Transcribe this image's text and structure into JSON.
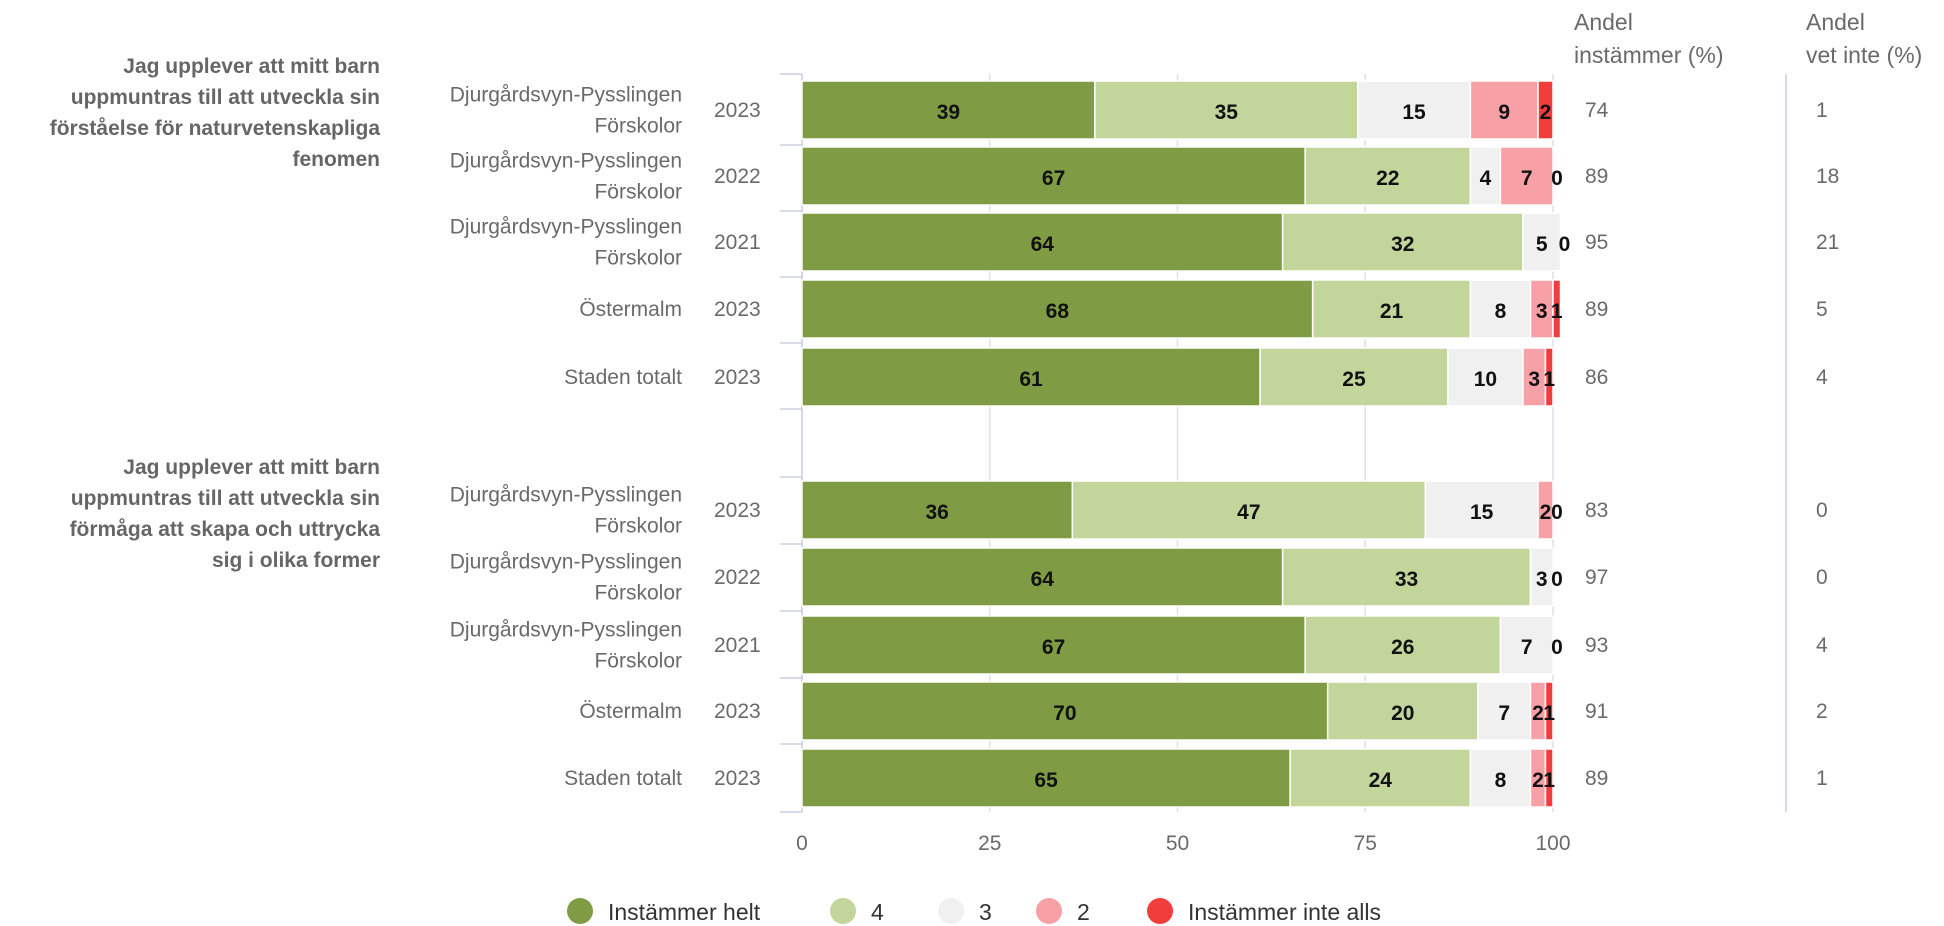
{
  "chart_data": {
    "type": "bar",
    "orientation": "horizontal",
    "stacked": true,
    "xlim": [
      0,
      100
    ],
    "xticks": [
      0,
      25,
      50,
      75,
      100
    ],
    "grid": true,
    "legend_position": "bottom",
    "columns": [
      {
        "line1": "Andel",
        "line2": "instämmer (%)"
      },
      {
        "line1": "Andel",
        "line2": "vet inte (%)"
      }
    ],
    "series": [
      {
        "name": "Instämmer helt",
        "color": "#7f9c44"
      },
      {
        "name": "4",
        "color": "#c2d69c"
      },
      {
        "name": "3",
        "color": "#f0f0f0"
      },
      {
        "name": "2",
        "color": "#f7a1a6"
      },
      {
        "name": "Instämmer inte alls",
        "color": "#f23d3d"
      }
    ],
    "groups": [
      {
        "title_lines": [
          "Jag upplever att mitt barn",
          "uppmuntras till att utveckla sin",
          "förståelse för naturvetenskapliga",
          "fenomen"
        ],
        "rows": [
          {
            "label_lines": [
              "Djurgårdsvyn-Pysslingen",
              "Förskolor"
            ],
            "year": "2023",
            "values": [
              39,
              35,
              15,
              9,
              2
            ],
            "labels": [
              "39",
              "35",
              "15",
              "9",
              "2"
            ],
            "andel_instammer": "74",
            "andel_vet_inte": "1"
          },
          {
            "label_lines": [
              "Djurgårdsvyn-Pysslingen",
              "Förskolor"
            ],
            "year": "2022",
            "values": [
              67,
              22,
              4,
              7,
              0
            ],
            "labels": [
              "67",
              "22",
              "4",
              "7",
              "0"
            ],
            "andel_instammer": "89",
            "andel_vet_inte": "18"
          },
          {
            "label_lines": [
              "Djurgårdsvyn-Pysslingen",
              "Förskolor"
            ],
            "year": "2021",
            "values": [
              64,
              32,
              5,
              0,
              0
            ],
            "labels": [
              "64",
              "32",
              "5",
              "0",
              ""
            ],
            "andel_instammer": "95",
            "andel_vet_inte": "21"
          },
          {
            "label_lines": [
              "Östermalm"
            ],
            "year": "2023",
            "values": [
              68,
              21,
              8,
              3,
              1
            ],
            "labels": [
              "68",
              "21",
              "8",
              "3",
              "1"
            ],
            "andel_instammer": "89",
            "andel_vet_inte": "5"
          },
          {
            "label_lines": [
              "Staden totalt"
            ],
            "year": "2023",
            "values": [
              61,
              25,
              10,
              3,
              1
            ],
            "labels": [
              "61",
              "25",
              "10",
              "3",
              "1"
            ],
            "andel_instammer": "86",
            "andel_vet_inte": "4"
          }
        ]
      },
      {
        "title_lines": [
          "Jag upplever att mitt barn",
          "uppmuntras till att utveckla sin",
          "förmåga att skapa och uttrycka",
          "sig i olika former"
        ],
        "rows": [
          {
            "label_lines": [
              "Djurgårdsvyn-Pysslingen",
              "Förskolor"
            ],
            "year": "2023",
            "values": [
              36,
              47,
              15,
              2,
              0
            ],
            "labels": [
              "36",
              "47",
              "15",
              "2",
              "0"
            ],
            "andel_instammer": "83",
            "andel_vet_inte": "0"
          },
          {
            "label_lines": [
              "Djurgårdsvyn-Pysslingen",
              "Förskolor"
            ],
            "year": "2022",
            "values": [
              64,
              33,
              3,
              0,
              0
            ],
            "labels": [
              "64",
              "33",
              "3",
              "0",
              ""
            ],
            "andel_instammer": "97",
            "andel_vet_inte": "0"
          },
          {
            "label_lines": [
              "Djurgårdsvyn-Pysslingen",
              "Förskolor"
            ],
            "year": "2021",
            "values": [
              67,
              26,
              7,
              0,
              0
            ],
            "labels": [
              "67",
              "26",
              "7",
              "0",
              ""
            ],
            "andel_instammer": "93",
            "andel_vet_inte": "4"
          },
          {
            "label_lines": [
              "Östermalm"
            ],
            "year": "2023",
            "values": [
              70,
              20,
              7,
              2,
              1
            ],
            "labels": [
              "70",
              "20",
              "7",
              "2",
              "1"
            ],
            "andel_instammer": "91",
            "andel_vet_inte": "2"
          },
          {
            "label_lines": [
              "Staden totalt"
            ],
            "year": "2023",
            "values": [
              65,
              24,
              8,
              2,
              1
            ],
            "labels": [
              "65",
              "24",
              "8",
              "2",
              "1"
            ],
            "andel_instammer": "89",
            "andel_vet_inte": "1"
          }
        ]
      }
    ]
  }
}
